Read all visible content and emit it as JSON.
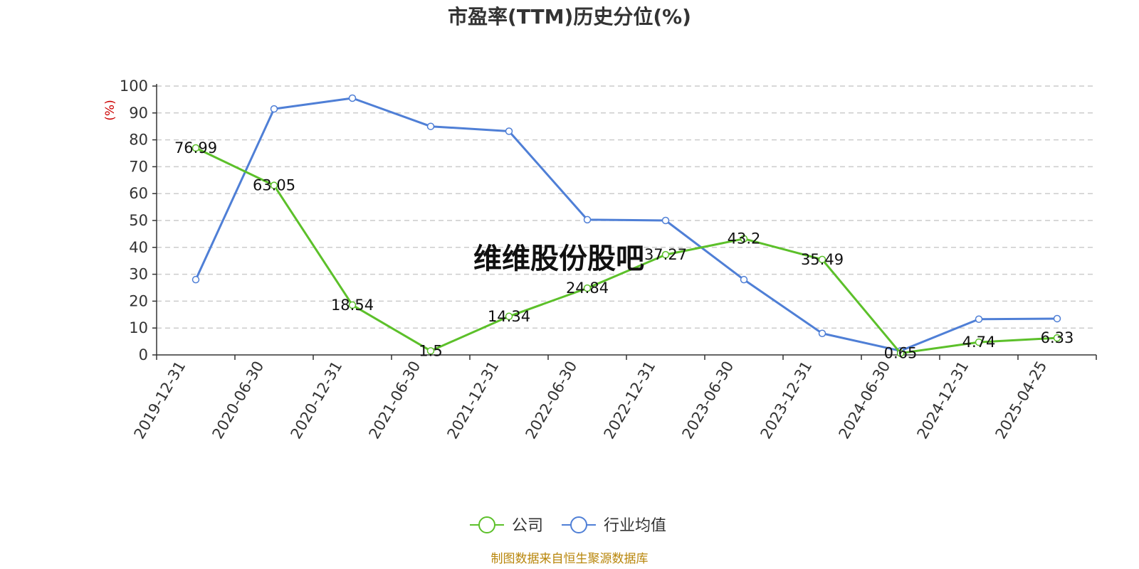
{
  "chart_data": {
    "type": "line",
    "title": "市盈率(TTM)历史分位(%)",
    "ylabel": "(%)",
    "ylim": [
      0,
      100
    ],
    "yticks": [
      0,
      10,
      20,
      30,
      40,
      50,
      60,
      70,
      80,
      90,
      100
    ],
    "grid": true,
    "legend_position": "bottom-center",
    "categories": [
      "2019-12-31",
      "2020-06-30",
      "2020-12-31",
      "2021-06-30",
      "2021-12-31",
      "2022-06-30",
      "2022-12-31",
      "2023-06-30",
      "2023-12-31",
      "2024-06-30",
      "2024-12-31",
      "2025-04-25"
    ],
    "series": [
      {
        "name": "公司",
        "color": "#5cc02a",
        "values": [
          76.99,
          63.05,
          18.54,
          1.5,
          14.34,
          24.84,
          37.27,
          43.2,
          35.49,
          0.65,
          4.74,
          6.33
        ],
        "labels": [
          "76.99",
          "63.05",
          "18.54",
          "1.5",
          "14.34",
          "24.84",
          "37.27",
          "43.2",
          "35.49",
          "0.65",
          "4.74",
          "6.33"
        ]
      },
      {
        "name": "行业均值",
        "color": "#4f7fd6",
        "values": [
          28,
          91.5,
          95.5,
          85,
          83.2,
          50.3,
          50,
          28,
          8,
          1.5,
          13.3,
          13.5
        ]
      }
    ]
  },
  "watermark": "维维股份股吧",
  "source": "制图数据来自恒生聚源数据库"
}
